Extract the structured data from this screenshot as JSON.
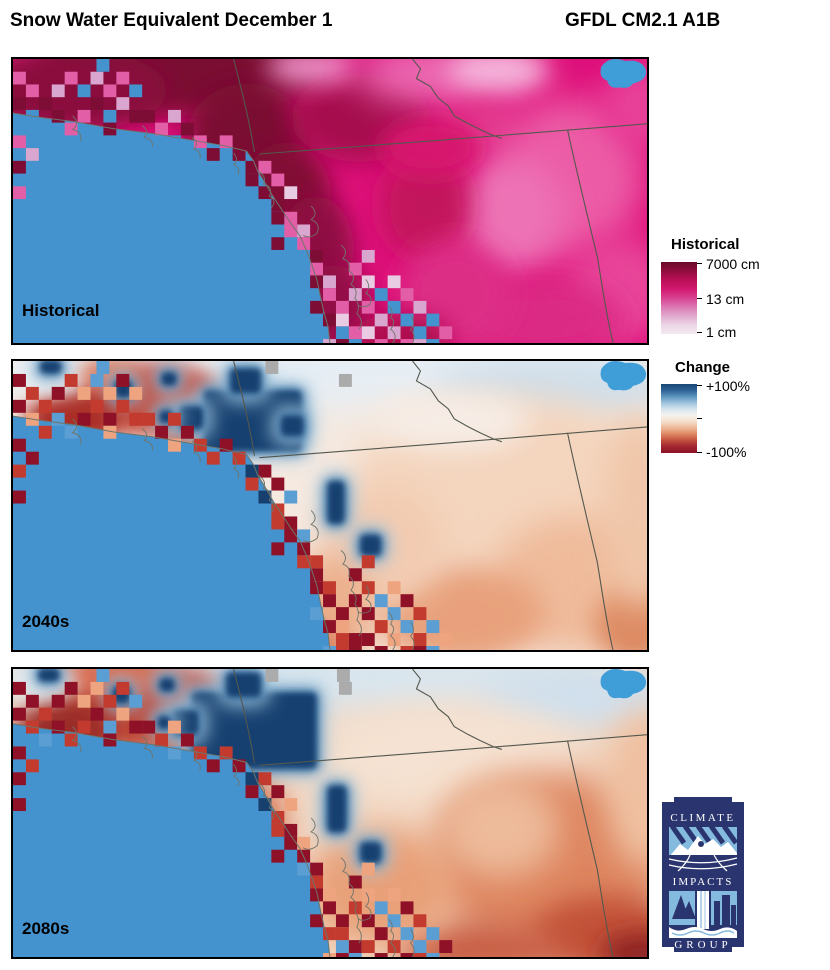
{
  "title": {
    "left": "Snow Water Equivalent December 1",
    "right": "GFDL CM2.1 A1B"
  },
  "panels": [
    {
      "label": "Historical"
    },
    {
      "label": "2040s"
    },
    {
      "label": "2080s"
    }
  ],
  "legend_historical": {
    "title": "Historical",
    "tick_top": "7000 cm",
    "tick_mid": "13 cm",
    "tick_bottom": "1 cm"
  },
  "legend_change": {
    "title": "Change",
    "tick_top": "+100%",
    "tick_bottom": "-100%"
  },
  "logo": {
    "line1": "CLIMATE",
    "line2": "IMPACTS",
    "line3": "GROUP"
  },
  "colors": {
    "ocean": "#4593CE",
    "lake": "#3F9DD8",
    "hist_base": "#DE107A",
    "hist_dark": "#7A0C32",
    "change_navy": "#17406F",
    "change_dark_red": "#8E1127",
    "border_line": "#54584E",
    "coast_line": "#6F746B",
    "legend_hist_gradient": [
      "#690B28",
      "#900D3E",
      "#BA0F57",
      "#D21870",
      "#D84291",
      "#DC78B4",
      "#E1A9CE",
      "#EDD7E6",
      "#F2E9F0"
    ],
    "legend_change_gradient": [
      "#174672",
      "#2E6296",
      "#5B93BE",
      "#9FC3DC",
      "#D5E4EE",
      "#F5F2ED",
      "#F5DECB",
      "#EEB896",
      "#DE8663",
      "#C14F3E",
      "#A02430",
      "#8C1127"
    ]
  }
}
